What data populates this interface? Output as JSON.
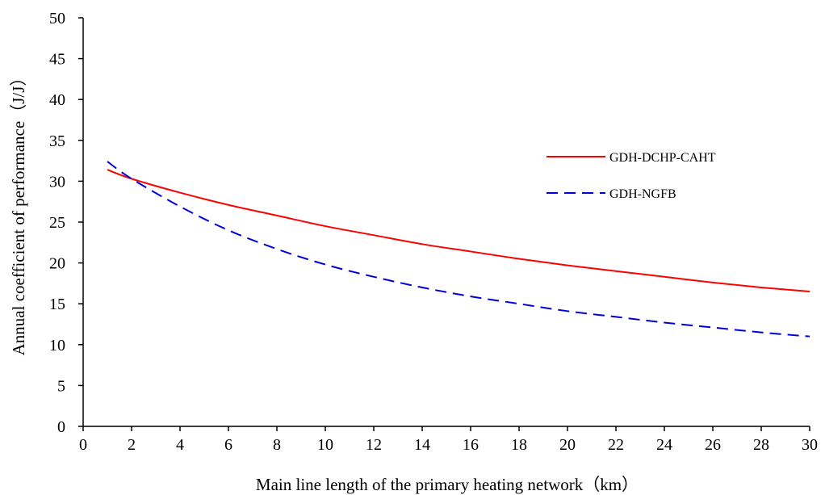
{
  "chart_data": {
    "type": "line",
    "title": "",
    "xlabel": "Main line length of the primary heating network（km）",
    "ylabel": "Annual coefficient of performance（J/J）",
    "xlim": [
      0,
      30
    ],
    "ylim": [
      0,
      50
    ],
    "xticks": [
      0,
      2,
      4,
      6,
      8,
      10,
      12,
      14,
      16,
      18,
      20,
      22,
      24,
      26,
      28,
      30
    ],
    "yticks": [
      0,
      5,
      10,
      15,
      20,
      25,
      30,
      35,
      40,
      45,
      50
    ],
    "grid": false,
    "legend_position": "right",
    "x": [
      1,
      2,
      4,
      6,
      8,
      10,
      12,
      14,
      16,
      18,
      20,
      22,
      24,
      26,
      28,
      30
    ],
    "series": [
      {
        "name": "GDH-DCHP-CAHT",
        "color": "#ff0000",
        "style": "solid",
        "values": [
          31.4,
          30.3,
          28.6,
          27.1,
          25.8,
          24.5,
          23.4,
          22.3,
          21.4,
          20.5,
          19.7,
          19.0,
          18.3,
          17.6,
          17.0,
          16.5
        ]
      },
      {
        "name": "GDH-NGFB",
        "color": "#0000dd",
        "style": "dashed",
        "values": [
          32.4,
          30.3,
          26.9,
          24.0,
          21.7,
          19.8,
          18.3,
          17.0,
          15.9,
          15.0,
          14.1,
          13.4,
          12.7,
          12.1,
          11.5,
          11.0
        ]
      }
    ]
  }
}
